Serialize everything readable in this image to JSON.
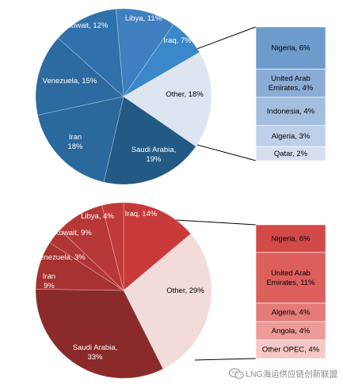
{
  "chart_data": [
    {
      "type": "pie",
      "title": "",
      "slices": [
        {
          "label": "Libya, 11%",
          "value": 11,
          "color": "#3f7fbf"
        },
        {
          "label": "Iraq, 7%",
          "value": 7,
          "color": "#3a87c9"
        },
        {
          "label": "Other, 18%",
          "value": 18,
          "color": "#dde5f0"
        },
        {
          "label": "Saudi Arabia, 19%",
          "value": 19,
          "color": "#225985"
        },
        {
          "label": "Iran 18%",
          "value": 18,
          "color": "#2b689c"
        },
        {
          "label": "Venezuela, 15%",
          "value": 15,
          "color": "#2c6aa0"
        },
        {
          "label": "Kuwait, 12%",
          "value": 12,
          "color": "#3071ab"
        }
      ],
      "breakdown": {
        "of": "Other, 18%",
        "items": [
          {
            "label": "Nigeria, 6%",
            "value": 6,
            "color": "#6e9bcb"
          },
          {
            "label": "United Arab Emirates, 4%",
            "value": 4,
            "color": "#8badd5"
          },
          {
            "label": "Indonesia, 4%",
            "value": 4,
            "color": "#a4bedf"
          },
          {
            "label": "Algeria, 3%",
            "value": 3,
            "color": "#becfe8"
          },
          {
            "label": "Qatar, 2%",
            "value": 2,
            "color": "#d4deef"
          }
        ]
      }
    },
    {
      "type": "pie",
      "title": "",
      "slices": [
        {
          "label": "Iraq, 14%",
          "value": 14,
          "color": "#c83a3a"
        },
        {
          "label": "Other, 29%",
          "value": 29,
          "color": "#f2dcda"
        },
        {
          "label": "Saudi Arabia, 33%",
          "value": 33,
          "color": "#8b2a2a"
        },
        {
          "label": "Iran 9%",
          "value": 9,
          "color": "#a63232"
        },
        {
          "label": "Venezuela, 3%",
          "value": 3,
          "color": "#b03636"
        },
        {
          "label": "Kuwait, 9%",
          "value": 9,
          "color": "#b83838"
        },
        {
          "label": "Libya, 4%",
          "value": 4,
          "color": "#c03a3a"
        }
      ],
      "breakdown": {
        "of": "Other, 29%",
        "items": [
          {
            "label": "Nigeria, 6%",
            "value": 6,
            "color": "#d24a48"
          },
          {
            "label": "United Arab Emirates, 11%",
            "value": 11,
            "color": "#dc5f5c"
          },
          {
            "label": "Algeria, 4%",
            "value": 4,
            "color": "#e47b78"
          },
          {
            "label": "Angola, 4%",
            "value": 4,
            "color": "#ec9b98"
          },
          {
            "label": "Other OPEC, 4%",
            "value": 4,
            "color": "#f5c8c5"
          }
        ]
      }
    }
  ],
  "watermark": {
    "logo": "wechat-logo-icon",
    "text": "LNG海运供应链创新联盟"
  }
}
